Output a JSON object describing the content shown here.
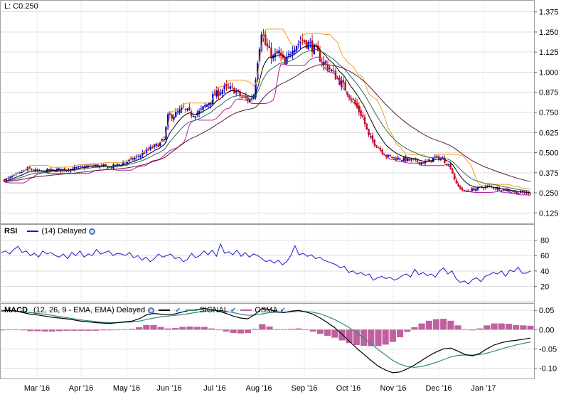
{
  "main_header": {
    "last_label": "L: C0.250"
  },
  "rsi_header": {
    "title": "RSI",
    "legend": "(14) Delayed"
  },
  "macd_header": {
    "title": "MACD",
    "legend": "(12, 26, 9 - EMA, EMA) Delayed",
    "signal_label": "SIGNAL",
    "osma_label": "OSMA"
  },
  "colors": {
    "up_candle": "#0000cc",
    "down_candle": "#cc0000",
    "ema_fast": "#000000",
    "ema_mid": "#2e6b5c",
    "ema_slow": "#5a1a3a",
    "upper_band": "#f0a020",
    "lower_band": "#b020a0",
    "rsi_line": "#1a1acc",
    "macd_line": "#000000",
    "signal_line": "#2e8b7a",
    "osma_bars": "#c060a0"
  },
  "chart_data": [
    {
      "type": "candlestick",
      "x_labels": [
        "Mar '16",
        "Apr '16",
        "May '16",
        "Jun '16",
        "Jul '16",
        "Aug '16",
        "Sep '16",
        "Oct '16",
        "Nov '16",
        "Dec '16",
        "Jan '17"
      ],
      "y_ticks": [
        "1.375",
        "1.250",
        "1.125",
        "1.000",
        "0.875",
        "0.750",
        "0.625",
        "0.500",
        "0.375",
        "0.250",
        "0.125"
      ],
      "ylim": [
        0.06,
        1.44
      ],
      "grid": true,
      "close_key_points": [
        [
          0,
          0.33
        ],
        [
          6,
          0.36
        ],
        [
          12,
          0.4
        ],
        [
          18,
          0.38
        ],
        [
          25,
          0.39
        ],
        [
          35,
          0.4
        ],
        [
          45,
          0.42
        ],
        [
          55,
          0.41
        ],
        [
          62,
          0.44
        ],
        [
          68,
          0.47
        ],
        [
          74,
          0.52
        ],
        [
          79,
          0.55
        ],
        [
          82,
          0.58
        ],
        [
          84,
          0.72
        ],
        [
          88,
          0.74
        ],
        [
          92,
          0.77
        ],
        [
          96,
          0.74
        ],
        [
          100,
          0.75
        ],
        [
          104,
          0.8
        ],
        [
          108,
          0.86
        ],
        [
          113,
          0.9
        ],
        [
          118,
          0.89
        ],
        [
          122,
          0.84
        ],
        [
          126,
          0.83
        ],
        [
          128,
          0.86
        ],
        [
          130,
          1.08
        ],
        [
          132,
          1.26
        ],
        [
          134,
          1.17
        ],
        [
          138,
          1.09
        ],
        [
          141,
          1.12
        ],
        [
          144,
          1.04
        ],
        [
          148,
          1.16
        ],
        [
          153,
          1.2
        ],
        [
          157,
          1.17
        ],
        [
          160,
          1.13
        ],
        [
          163,
          1.07
        ],
        [
          167,
          1.02
        ],
        [
          171,
          0.96
        ],
        [
          175,
          0.9
        ],
        [
          178,
          0.84
        ],
        [
          181,
          0.78
        ],
        [
          184,
          0.72
        ],
        [
          187,
          0.6
        ],
        [
          190,
          0.56
        ],
        [
          193,
          0.52
        ],
        [
          196,
          0.48
        ],
        [
          199,
          0.47
        ],
        [
          204,
          0.46
        ],
        [
          209,
          0.45
        ],
        [
          213,
          0.44
        ],
        [
          217,
          0.44
        ],
        [
          221,
          0.47
        ],
        [
          225,
          0.46
        ],
        [
          229,
          0.41
        ],
        [
          232,
          0.3
        ],
        [
          236,
          0.26
        ],
        [
          240,
          0.27
        ],
        [
          244,
          0.28
        ],
        [
          248,
          0.29
        ],
        [
          252,
          0.28
        ],
        [
          256,
          0.27
        ],
        [
          260,
          0.26
        ],
        [
          264,
          0.25
        ],
        [
          268,
          0.25
        ],
        [
          270,
          0.25
        ]
      ]
    },
    {
      "type": "line",
      "name": "RSI",
      "y_ticks": [
        80,
        60,
        40,
        20
      ],
      "ylim": [
        0,
        100
      ],
      "values": [
        64,
        66,
        62,
        68,
        72,
        64,
        66,
        60,
        63,
        58,
        66,
        62,
        64,
        60,
        58,
        62,
        56,
        64,
        60,
        66,
        58,
        62,
        60,
        68,
        62,
        64,
        66,
        60,
        63,
        62,
        60,
        64,
        57,
        60,
        54,
        58,
        52,
        56,
        62,
        58,
        60,
        62,
        56,
        58,
        52,
        55,
        63,
        57,
        60,
        66,
        61,
        67,
        59,
        75,
        63,
        65,
        61,
        67,
        59,
        64,
        58,
        62,
        60,
        56,
        52,
        54,
        50,
        54,
        48,
        52,
        60,
        73,
        61,
        63,
        59,
        61,
        56,
        58,
        54,
        52,
        50,
        48,
        44,
        46,
        38,
        40,
        36,
        38,
        34,
        36,
        28,
        31,
        33,
        30,
        32,
        28,
        30,
        34,
        36,
        32,
        42,
        35,
        38,
        34,
        36,
        32,
        40,
        44,
        36,
        40,
        30,
        25,
        27,
        23,
        29,
        31,
        26,
        33,
        35,
        38,
        36,
        40,
        33,
        41,
        39,
        45,
        37,
        37,
        40
      ]
    },
    {
      "type": "bar+line",
      "name": "MACD",
      "y_ticks": [
        0.05,
        0.0,
        -0.05,
        -0.1
      ],
      "ylim": [
        -0.127,
        0.067
      ],
      "macd": [
        0.048,
        0.05,
        0.048,
        0.044,
        0.04,
        0.038,
        0.035,
        0.032,
        0.03,
        0.028,
        0.025,
        0.022,
        0.02,
        0.018,
        0.017,
        0.016,
        0.018,
        0.02,
        0.022,
        0.028,
        0.038,
        0.042,
        0.04,
        0.038,
        0.041,
        0.046,
        0.05,
        0.052,
        0.055,
        0.052,
        0.048,
        0.042,
        0.035,
        0.03,
        0.028,
        0.04,
        0.055,
        0.052,
        0.046,
        0.044,
        0.048,
        0.05,
        0.046,
        0.04,
        0.03,
        0.018,
        0.005,
        -0.012,
        -0.03,
        -0.048,
        -0.064,
        -0.08,
        -0.095,
        -0.105,
        -0.112,
        -0.11,
        -0.102,
        -0.092,
        -0.08,
        -0.068,
        -0.058,
        -0.05,
        -0.048,
        -0.056,
        -0.065,
        -0.068,
        -0.062,
        -0.05,
        -0.04,
        -0.034,
        -0.03,
        -0.028,
        -0.025,
        -0.022
      ],
      "signal": [
        0.05,
        0.049,
        0.048,
        0.046,
        0.044,
        0.042,
        0.04,
        0.037,
        0.034,
        0.031,
        0.028,
        0.025,
        0.023,
        0.021,
        0.019,
        0.018,
        0.018,
        0.019,
        0.02,
        0.022,
        0.026,
        0.03,
        0.033,
        0.035,
        0.037,
        0.039,
        0.042,
        0.045,
        0.048,
        0.049,
        0.049,
        0.047,
        0.044,
        0.04,
        0.037,
        0.038,
        0.041,
        0.044,
        0.045,
        0.045,
        0.046,
        0.047,
        0.047,
        0.045,
        0.041,
        0.034,
        0.026,
        0.016,
        0.005,
        -0.008,
        -0.022,
        -0.037,
        -0.052,
        -0.066,
        -0.08,
        -0.09,
        -0.096,
        -0.098,
        -0.096,
        -0.091,
        -0.085,
        -0.078,
        -0.071,
        -0.067,
        -0.066,
        -0.066,
        -0.065,
        -0.061,
        -0.056,
        -0.05,
        -0.045,
        -0.04,
        -0.036,
        -0.032
      ]
    }
  ]
}
